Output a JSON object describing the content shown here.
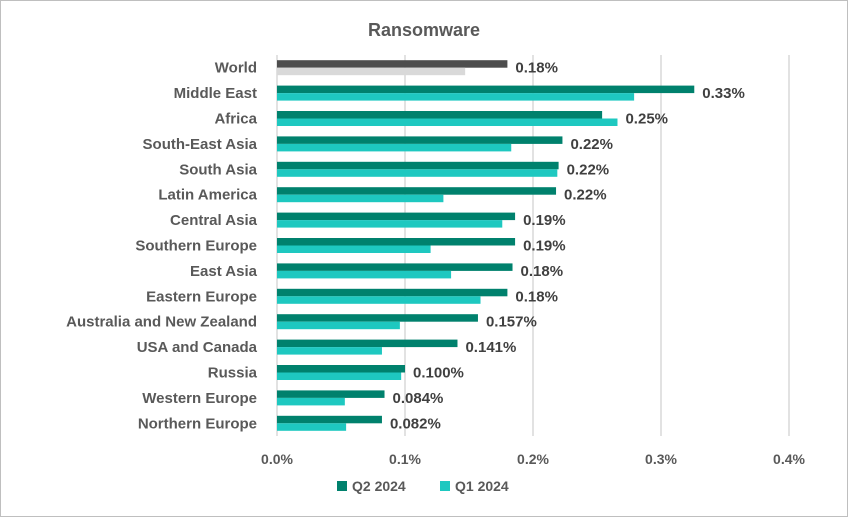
{
  "chart_data": {
    "type": "bar",
    "orientation": "horizontal",
    "title": "Ransomware",
    "categories": [
      "World",
      "Middle East",
      "Africa",
      "South-East Asia",
      "South Asia",
      "Latin America",
      "Central Asia",
      "Southern Europe",
      "East Asia",
      "Eastern Europe",
      "Australia and New Zealand",
      "USA and Canada",
      "Russia",
      "Western Europe",
      "Northern Europe"
    ],
    "series": [
      {
        "name": "Q2 2024",
        "color": "#00816d",
        "special_colors": {
          "World": "#4d4d4d"
        },
        "values": [
          0.18,
          0.326,
          0.254,
          0.223,
          0.22,
          0.218,
          0.186,
          0.186,
          0.184,
          0.18,
          0.157,
          0.141,
          0.1,
          0.084,
          0.082
        ],
        "data_labels": [
          "0.18%",
          "0.33%",
          "0.25%",
          "0.22%",
          "0.22%",
          "0.22%",
          "0.19%",
          "0.19%",
          "0.18%",
          "0.18%",
          "0.157%",
          "0.141%",
          "0.100%",
          "0.084%",
          "0.082%"
        ]
      },
      {
        "name": "Q1 2024",
        "color": "#1ec8c0",
        "special_colors": {
          "World": "#d9d9d9"
        },
        "values": [
          0.147,
          0.279,
          0.266,
          0.183,
          0.219,
          0.13,
          0.176,
          0.12,
          0.136,
          0.159,
          0.096,
          0.082,
          0.097,
          0.053,
          0.054
        ]
      }
    ],
    "xlim": [
      0,
      0.4
    ],
    "xticks": [
      "0.0%",
      "0.1%",
      "0.2%",
      "0.3%",
      "0.4%"
    ],
    "grid": true,
    "legend": "bottom"
  }
}
